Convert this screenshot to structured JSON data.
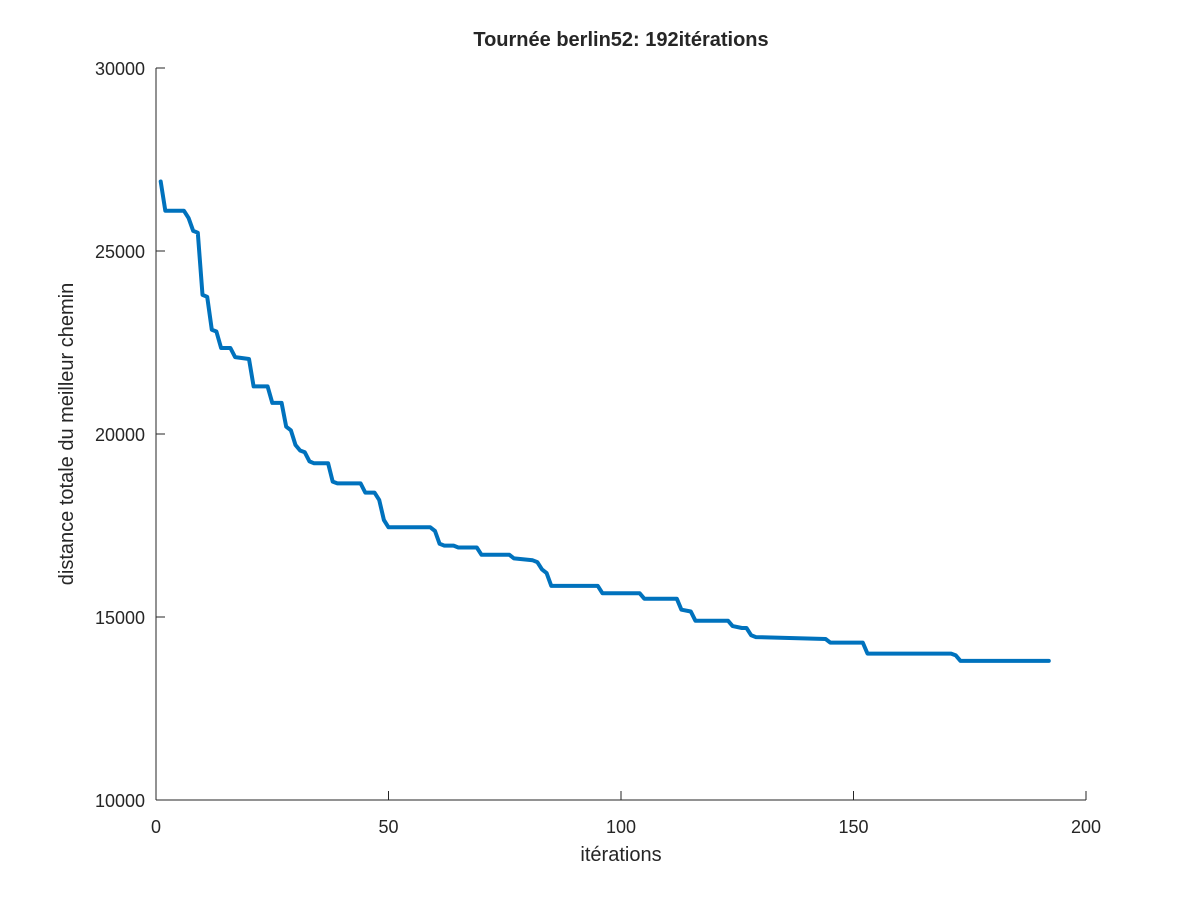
{
  "chart_data": {
    "type": "line",
    "title": "Tournée berlin52: 192itérations",
    "xlabel": "itérations",
    "ylabel": "distance totale du meilleur chemin",
    "xlim": [
      0,
      200
    ],
    "ylim": [
      10000,
      30000
    ],
    "xticks": [
      0,
      50,
      100,
      150,
      200
    ],
    "xtick_labels": [
      "0",
      "50",
      "100",
      "150",
      "200"
    ],
    "yticks": [
      10000,
      15000,
      20000,
      25000,
      30000
    ],
    "ytick_labels": [
      "10000",
      "15000",
      "20000",
      "25000",
      "30000"
    ],
    "grid": false,
    "series": [
      {
        "color": "#0072bd",
        "points": [
          [
            1,
            26900
          ],
          [
            2,
            26100
          ],
          [
            6,
            26100
          ],
          [
            7,
            25900
          ],
          [
            8,
            25550
          ],
          [
            9,
            25500
          ],
          [
            10,
            23800
          ],
          [
            11,
            23750
          ],
          [
            12,
            22850
          ],
          [
            13,
            22800
          ],
          [
            14,
            22350
          ],
          [
            16,
            22350
          ],
          [
            17,
            22100
          ],
          [
            20,
            22050
          ],
          [
            21,
            21300
          ],
          [
            24,
            21300
          ],
          [
            25,
            20850
          ],
          [
            27,
            20850
          ],
          [
            28,
            20200
          ],
          [
            29,
            20100
          ],
          [
            30,
            19700
          ],
          [
            31,
            19550
          ],
          [
            32,
            19500
          ],
          [
            33,
            19250
          ],
          [
            34,
            19200
          ],
          [
            37,
            19200
          ],
          [
            38,
            18700
          ],
          [
            39,
            18650
          ],
          [
            44,
            18650
          ],
          [
            45,
            18400
          ],
          [
            47,
            18400
          ],
          [
            48,
            18200
          ],
          [
            49,
            17650
          ],
          [
            50,
            17450
          ],
          [
            59,
            17450
          ],
          [
            60,
            17350
          ],
          [
            61,
            17000
          ],
          [
            62,
            16950
          ],
          [
            64,
            16950
          ],
          [
            65,
            16900
          ],
          [
            69,
            16900
          ],
          [
            70,
            16700
          ],
          [
            76,
            16700
          ],
          [
            77,
            16600
          ],
          [
            81,
            16550
          ],
          [
            82,
            16500
          ],
          [
            83,
            16300
          ],
          [
            84,
            16200
          ],
          [
            85,
            15850
          ],
          [
            95,
            15850
          ],
          [
            96,
            15650
          ],
          [
            104,
            15650
          ],
          [
            105,
            15500
          ],
          [
            112,
            15500
          ],
          [
            113,
            15200
          ],
          [
            115,
            15150
          ],
          [
            116,
            14900
          ],
          [
            123,
            14900
          ],
          [
            124,
            14750
          ],
          [
            126,
            14700
          ],
          [
            127,
            14700
          ],
          [
            128,
            14500
          ],
          [
            129,
            14450
          ],
          [
            144,
            14400
          ],
          [
            145,
            14300
          ],
          [
            152,
            14300
          ],
          [
            153,
            14000
          ],
          [
            171,
            14000
          ],
          [
            172,
            13950
          ],
          [
            173,
            13800
          ],
          [
            192,
            13800
          ]
        ]
      }
    ]
  }
}
